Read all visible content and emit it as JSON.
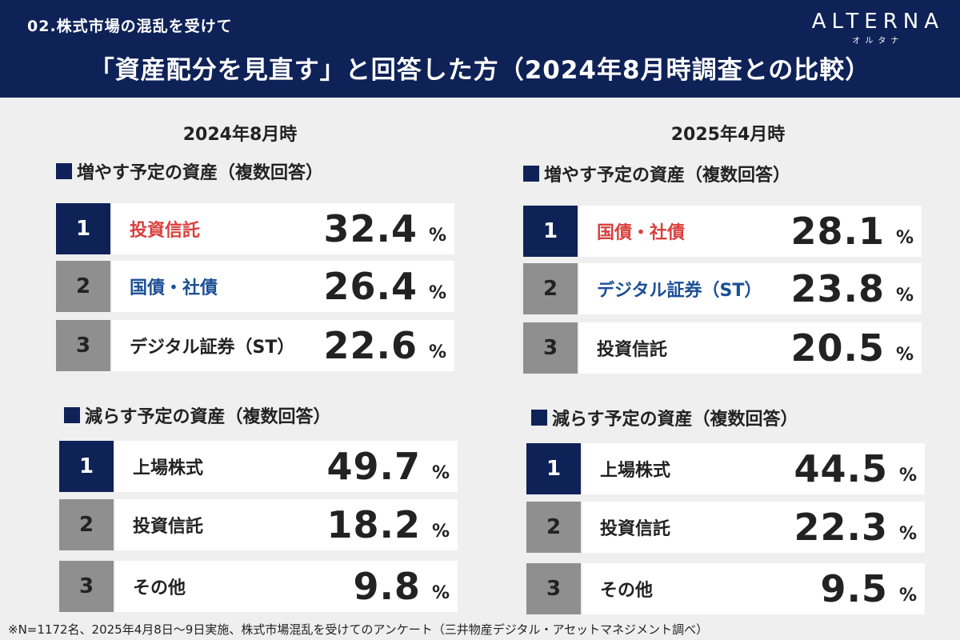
{
  "header": {
    "subtitle": "02.株式市場の混乱を受けて",
    "title": "「資産配分を見直す」と回答した方（2024年8月時調査との比較）",
    "logo_main": "ALTERNA",
    "logo_kana": "オルタナ"
  },
  "colors": {
    "navy": "#0e2257",
    "gray": "#8f8f8f",
    "red": "#d9403e",
    "blue": "#1d4f96"
  },
  "columns": [
    {
      "title": "2024年8月時",
      "increase": {
        "label": "増やす予定の資産（複数回答）",
        "items": [
          {
            "rank": "1",
            "name": "投資信託",
            "value": "32.4",
            "unit": "%"
          },
          {
            "rank": "2",
            "name": "国債・社債",
            "value": "26.4",
            "unit": "%"
          },
          {
            "rank": "3",
            "name": "デジタル証券（ST）",
            "value": "22.6",
            "unit": "%"
          }
        ]
      },
      "decrease": {
        "label": "減らす予定の資産（複数回答）",
        "items": [
          {
            "rank": "1",
            "name": "上場株式",
            "value": "49.7",
            "unit": "%"
          },
          {
            "rank": "2",
            "name": "投資信託",
            "value": "18.2",
            "unit": "%"
          },
          {
            "rank": "3",
            "name": "その他",
            "value": "9.8",
            "unit": "%"
          }
        ]
      }
    },
    {
      "title": "2025年4月時",
      "increase": {
        "label": "増やす予定の資産（複数回答）",
        "items": [
          {
            "rank": "1",
            "name": "国債・社債",
            "value": "28.1",
            "unit": "%"
          },
          {
            "rank": "2",
            "name": "デジタル証券（ST）",
            "value": "23.8",
            "unit": "%"
          },
          {
            "rank": "3",
            "name": "投資信託",
            "value": "20.5",
            "unit": "%"
          }
        ]
      },
      "decrease": {
        "label": "減らす予定の資産（複数回答）",
        "items": [
          {
            "rank": "1",
            "name": "上場株式",
            "value": "44.5",
            "unit": "%"
          },
          {
            "rank": "2",
            "name": "投資信託",
            "value": "22.3",
            "unit": "%"
          },
          {
            "rank": "3",
            "name": "その他",
            "value": "9.5",
            "unit": "%"
          }
        ]
      }
    }
  ],
  "footnote": "※N=1172名、2025年4月8日〜9日実施、株式市場混乱を受けてのアンケート（三井物産デジタル・アセットマネジメント調べ）"
}
